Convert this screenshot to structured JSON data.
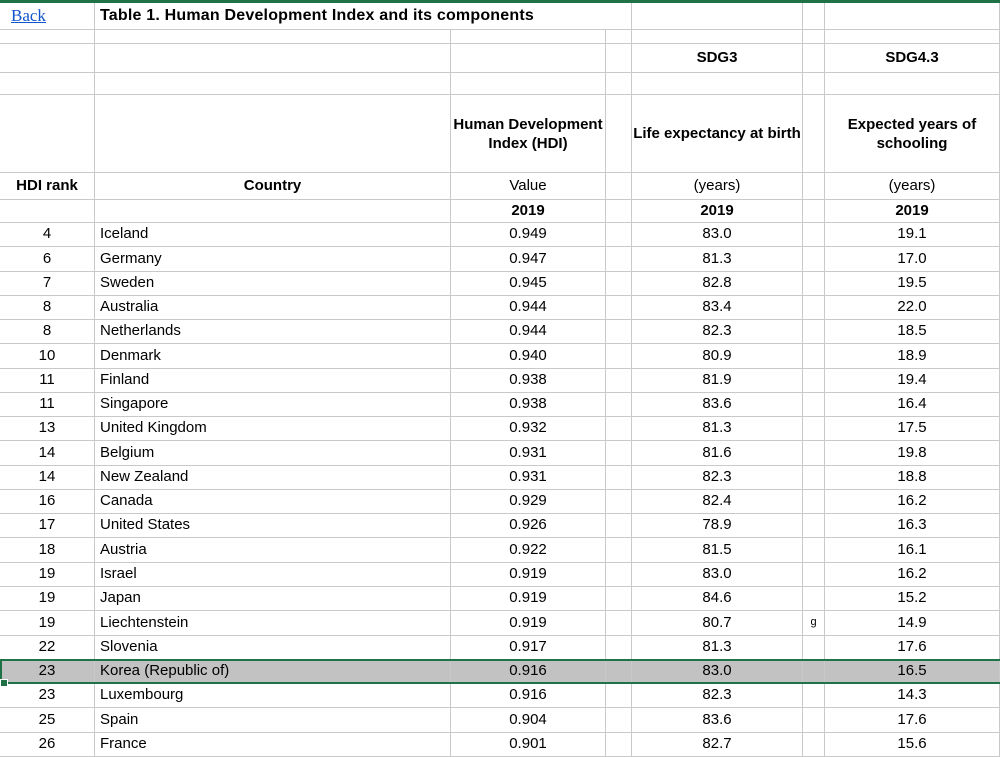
{
  "colors": {
    "green": "#1F7245",
    "grid": "#C9C9C9",
    "sel": "#C2C2C2",
    "link": "#1155CC",
    "ink": "#000000"
  },
  "back_label": "Back",
  "title": "Table 1. Human Development Index and its components",
  "header": {
    "sdg_life": "SDG3",
    "sdg_school": "SDG4.3",
    "hdi_name": "Human Development Index (HDI)",
    "life_name": "Life expectancy at birth",
    "school_name": "Expected years of schooling",
    "rank": "HDI rank",
    "country": "Country",
    "hdi_unit": "Value",
    "life_unit": "(years)",
    "school_unit": "(years)",
    "hdi_year": "2019",
    "life_year": "2019",
    "school_year": "2019"
  },
  "rows": [
    {
      "rank": "4",
      "country": "Iceland",
      "hdi": "0.949",
      "life": "83.0",
      "note": "",
      "school": "19.1",
      "selected": false
    },
    {
      "rank": "6",
      "country": "Germany",
      "hdi": "0.947",
      "life": "81.3",
      "note": "",
      "school": "17.0",
      "selected": false
    },
    {
      "rank": "7",
      "country": "Sweden",
      "hdi": "0.945",
      "life": "82.8",
      "note": "",
      "school": "19.5",
      "selected": false
    },
    {
      "rank": "8",
      "country": "Australia",
      "hdi": "0.944",
      "life": "83.4",
      "note": "",
      "school": "22.0",
      "selected": false
    },
    {
      "rank": "8",
      "country": "Netherlands",
      "hdi": "0.944",
      "life": "82.3",
      "note": "",
      "school": "18.5",
      "selected": false
    },
    {
      "rank": "10",
      "country": "Denmark",
      "hdi": "0.940",
      "life": "80.9",
      "note": "",
      "school": "18.9",
      "selected": false
    },
    {
      "rank": "11",
      "country": "Finland",
      "hdi": "0.938",
      "life": "81.9",
      "note": "",
      "school": "19.4",
      "selected": false
    },
    {
      "rank": "11",
      "country": "Singapore",
      "hdi": "0.938",
      "life": "83.6",
      "note": "",
      "school": "16.4",
      "selected": false
    },
    {
      "rank": "13",
      "country": "United Kingdom",
      "hdi": "0.932",
      "life": "81.3",
      "note": "",
      "school": "17.5",
      "selected": false
    },
    {
      "rank": "14",
      "country": "Belgium",
      "hdi": "0.931",
      "life": "81.6",
      "note": "",
      "school": "19.8",
      "selected": false
    },
    {
      "rank": "14",
      "country": "New Zealand",
      "hdi": "0.931",
      "life": "82.3",
      "note": "",
      "school": "18.8",
      "selected": false
    },
    {
      "rank": "16",
      "country": "Canada",
      "hdi": "0.929",
      "life": "82.4",
      "note": "",
      "school": "16.2",
      "selected": false
    },
    {
      "rank": "17",
      "country": "United States",
      "hdi": "0.926",
      "life": "78.9",
      "note": "",
      "school": "16.3",
      "selected": false
    },
    {
      "rank": "18",
      "country": "Austria",
      "hdi": "0.922",
      "life": "81.5",
      "note": "",
      "school": "16.1",
      "selected": false
    },
    {
      "rank": "19",
      "country": "Israel",
      "hdi": "0.919",
      "life": "83.0",
      "note": "",
      "school": "16.2",
      "selected": false
    },
    {
      "rank": "19",
      "country": "Japan",
      "hdi": "0.919",
      "life": "84.6",
      "note": "",
      "school": "15.2",
      "selected": false
    },
    {
      "rank": "19",
      "country": "Liechtenstein",
      "hdi": "0.919",
      "life": "80.7",
      "note": "g",
      "school": "14.9",
      "selected": false
    },
    {
      "rank": "22",
      "country": "Slovenia",
      "hdi": "0.917",
      "life": "81.3",
      "note": "",
      "school": "17.6",
      "selected": false
    },
    {
      "rank": "23",
      "country": "Korea (Republic of)",
      "hdi": "0.916",
      "life": "83.0",
      "note": "",
      "school": "16.5",
      "selected": true
    },
    {
      "rank": "23",
      "country": "Luxembourg",
      "hdi": "0.916",
      "life": "82.3",
      "note": "",
      "school": "14.3",
      "selected": false
    },
    {
      "rank": "25",
      "country": "Spain",
      "hdi": "0.904",
      "life": "83.6",
      "note": "",
      "school": "17.6",
      "selected": false
    },
    {
      "rank": "26",
      "country": "France",
      "hdi": "0.901",
      "life": "82.7",
      "note": "",
      "school": "15.6",
      "selected": false
    }
  ]
}
